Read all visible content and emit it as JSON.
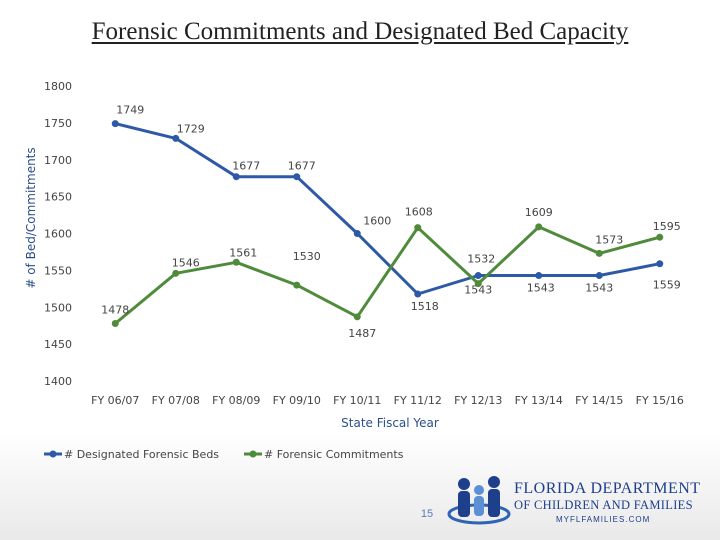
{
  "slide": {
    "title": "Forensic Commitments and Designated Bed Capacity",
    "page_number": "15",
    "logo": {
      "line1": "FLORIDA DEPARTMENT",
      "line2": "OF CHILDREN AND FAMILIES",
      "line3": "MYFLFAMILIES.COM"
    }
  },
  "chart_data": {
    "type": "line",
    "title": "",
    "xlabel": "State Fiscal Year",
    "ylabel": "# of Bed/Commitments",
    "ylim": [
      1400,
      1800
    ],
    "yticks": [
      1400,
      1450,
      1500,
      1550,
      1600,
      1650,
      1700,
      1750,
      1800
    ],
    "grid": false,
    "legend_position": "bottom-left",
    "categories": [
      "FY 06/07",
      "FY 07/08",
      "FY 08/09",
      "FY 09/10",
      "FY 10/11",
      "FY 11/12",
      "FY 12/13",
      "FY 13/14",
      "FY 14/15",
      "FY 15/16"
    ],
    "series": [
      {
        "name": "# Designated Forensic Beds",
        "color": "#2e59a7",
        "values": [
          1749,
          1729,
          1677,
          1677,
          1600,
          1518,
          1543,
          1543,
          1543,
          1559
        ]
      },
      {
        "name": "# Forensic Commitments",
        "color": "#4f8b3b",
        "values": [
          1478,
          1546,
          1561,
          1530,
          1487,
          1608,
          1532,
          1609,
          1573,
          1595
        ]
      }
    ]
  }
}
